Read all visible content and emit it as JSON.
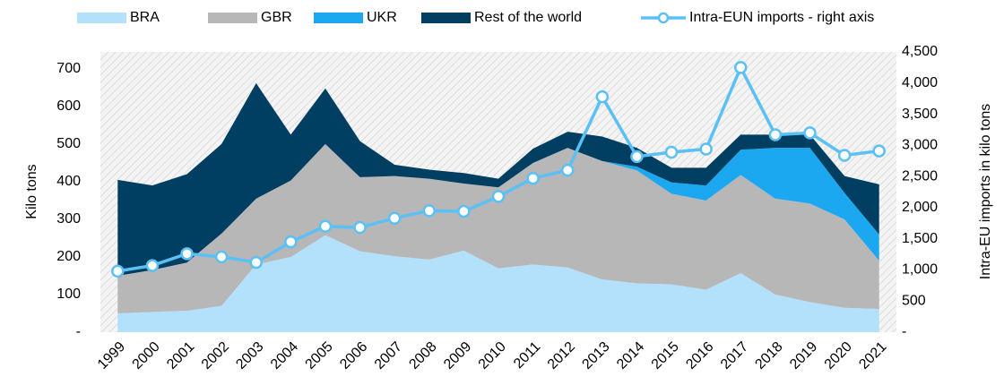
{
  "chart_data": {
    "type": "stacked_area_line",
    "categories": [
      "1999",
      "2000",
      "2001",
      "2002",
      "2003",
      "2004",
      "2005",
      "2006",
      "2007",
      "2008",
      "2009",
      "2010",
      "2011",
      "2012",
      "2013",
      "2014",
      "2015",
      "2016",
      "2017",
      "2018",
      "2019",
      "2020",
      "2021"
    ],
    "series": [
      {
        "name": "BRA",
        "color": "#b3e0fb",
        "values": [
          50,
          54,
          57,
          70,
          180,
          200,
          258,
          215,
          202,
          193,
          217,
          170,
          180,
          172,
          140,
          130,
          127,
          113,
          157,
          100,
          80,
          65,
          62
        ]
      },
      {
        "name": "GBR",
        "color": "#b7b7b7",
        "values": [
          100,
          111,
          128,
          192,
          175,
          203,
          242,
          197,
          213,
          215,
          178,
          215,
          270,
          318,
          315,
          300,
          241,
          237,
          261,
          255,
          262,
          235,
          128
        ]
      },
      {
        "name": "UKR",
        "color": "#1ba8f0",
        "values": [
          0,
          0,
          0,
          0,
          0,
          0,
          0,
          0,
          0,
          0,
          0,
          0,
          0,
          0,
          0,
          10,
          30,
          40,
          67,
          135,
          148,
          70,
          70
        ]
      },
      {
        "name": "Rest of the world",
        "color": "#003e62",
        "values": [
          255,
          225,
          235,
          238,
          307,
          122,
          148,
          96,
          30,
          24,
          28,
          23,
          38,
          43,
          65,
          50,
          39,
          47,
          40,
          35,
          35,
          45,
          133
        ]
      },
      {
        "name": "Intra-EUN imports - right axis",
        "color": "#5bc0f5",
        "axis": "y2",
        "type": "line",
        "values": [
          980,
          1070,
          1260,
          1210,
          1120,
          1450,
          1700,
          1680,
          1830,
          1950,
          1940,
          2180,
          2470,
          2600,
          3780,
          2820,
          2890,
          2940,
          4250,
          3170,
          3200,
          2840,
          2910
        ]
      }
    ],
    "ylabel": "Kilo tons",
    "y2label": "Intra-EU imports in kilo tons",
    "ylim": [
      0,
      745
    ],
    "yticks": [
      {
        "value": 0,
        "label": "-"
      },
      100,
      200,
      300,
      400,
      500,
      600,
      700
    ],
    "y2lim": [
      0,
      4500
    ],
    "y2ticks": [
      {
        "value": 0,
        "label": "-"
      },
      500,
      {
        "value": 1000,
        "label": "1,000"
      },
      {
        "value": 1500,
        "label": "1,500"
      },
      {
        "value": 2000,
        "label": "2,000"
      },
      {
        "value": 2500,
        "label": "2,500"
      },
      {
        "value": 3000,
        "label": "3,000"
      },
      {
        "value": 3500,
        "label": "3,500"
      },
      {
        "value": 4000,
        "label": "4,000"
      },
      {
        "value": 4500,
        "label": "4,500"
      }
    ],
    "legend": "top",
    "grid": false
  }
}
